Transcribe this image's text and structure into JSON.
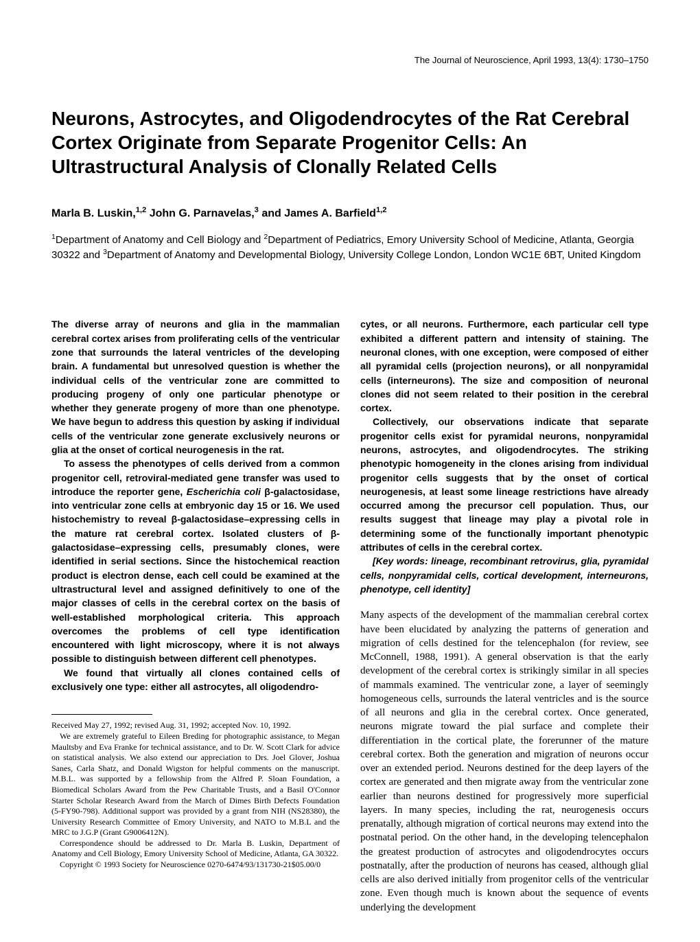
{
  "journal_header": "The Journal of Neuroscience, April 1993, 13(4): 1730–1750",
  "title": "Neurons, Astrocytes, and Oligodendrocytes of the Rat Cerebral Cortex Originate from Separate Progenitor Cells: An Ultrastructural Analysis of Clonally Related Cells",
  "authors_html": "Marla B. Luskin,<sup>1,2</sup> John G. Parnavelas,<sup>3</sup> and James A. Barfield<sup>1,2</sup>",
  "affiliations_html": "<sup>1</sup>Department of Anatomy and Cell Biology and <sup>2</sup>Department of Pediatrics, Emory University School of Medicine, Atlanta, Georgia 30322 and <sup>3</sup>Department of Anatomy and Developmental Biology, University College London, London WC1E 6BT, United Kingdom",
  "abstract": {
    "para1": "The diverse array of neurons and glia in the mammalian cerebral cortex arises from proliferating cells of the ventricular zone that surrounds the lateral ventricles of the developing brain. A fundamental but unresolved question is whether the individual cells of the ventricular zone are committed to producing progeny of only one particular phenotype or whether they generate progeny of more than one phenotype. We have begun to address this question by asking if individual cells of the ventricular zone generate exclusively neurons or glia at the onset of cortical neurogenesis in the rat.",
    "para2_html": "To assess the phenotypes of cells derived from a common progenitor cell, retroviral-mediated gene transfer was used to introduce the reporter gene, <i>Escherichia coli</i> β-galactosidase, into ventricular zone cells at embryonic day 15 or 16. We used histochemistry to reveal β-galactosidase–expressing cells in the mature rat cerebral cortex. Isolated clusters of β-galactosidase–expressing cells, presumably clones, were identified in serial sections. Since the histochemical reaction product is electron dense, each cell could be examined at the ultrastructural level and assigned definitively to one of the major classes of cells in the cerebral cortex on the basis of well-established morphological criteria. This approach overcomes the problems of cell type identification encountered with light microscopy, where it is not always possible to distinguish between different cell phenotypes.",
    "para3": "We found that virtually all clones contained cells of exclusively one type: either all astrocytes, all oligodendro-",
    "para4": "cytes, or all neurons. Furthermore, each particular cell type exhibited a different pattern and intensity of staining. The neuronal clones, with one exception, were composed of either all pyramidal cells (projection neurons), or all nonpyramidal cells (interneurons). The size and composition of neuronal clones did not seem related to their position in the cerebral cortex.",
    "para5": "Collectively, our observations indicate that separate progenitor cells exist for pyramidal neurons, nonpyramidal neurons, astrocytes, and oligodendrocytes. The striking phenotypic homogeneity in the clones arising from individual progenitor cells suggests that by the onset of cortical neurogenesis, at least some lineage restrictions have already occurred among the precursor cell population. Thus, our results suggest that lineage may play a pivotal role in determining some of the functionally important phenotypic attributes of cells in the cerebral cortex.",
    "keywords": "[Key words: lineage, recombinant retrovirus, glia, pyramidal cells, nonpyramidal cells, cortical development, interneurons, phenotype, cell identity]"
  },
  "body": {
    "para1": "Many aspects of the development of the mammalian cerebral cortex have been elucidated by analyzing the patterns of generation and migration of cells destined for the telencephalon (for review, see McConnell, 1988, 1991). A general observation is that the early development of the cerebral cortex is strikingly similar in all species of mammals examined. The ventricular zone, a layer of seemingly homogeneous cells, surrounds the lateral ventricles and is the source of all neurons and glia in the cerebral cortex. Once generated, neurons migrate toward the pial surface and complete their differentiation in the cortical plate, the forerunner of the mature cerebral cortex. Both the generation and migration of neurons occur over an extended period. Neurons destined for the deep layers of the cortex are generated and then migrate away from the ventricular zone earlier than neurons destined for progressively more superficial layers. In many species, including the rat, neurogenesis occurs prenatally, although migration of cortical neurons may extend into the postnatal period. On the other hand, in the developing telencephalon the greatest production of astrocytes and oligodendrocytes occurs postnatally, after the production of neurons has ceased, although glial cells are also derived initially from progenitor cells of the ventricular zone. Even though much is known about the sequence of events underlying the development"
  },
  "footnotes": {
    "received": "Received May 27, 1992; revised Aug. 31, 1992; accepted Nov. 10, 1992.",
    "acknowledgments": "We are extremely grateful to Eileen Breding for photographic assistance, to Megan Maultsby and Eva Franke for technical assistance, and to Dr. W. Scott Clark for advice on statistical analysis. We also extend our appreciation to Drs. Joel Glover, Joshua Sanes, Carla Shatz, and Donald Wigston for helpful comments on the manuscript. M.B.L. was supported by a fellowship from the Alfred P. Sloan Foundation, a Biomedical Scholars Award from the Pew Charitable Trusts, and a Basil O'Connor Starter Scholar Research Award from the March of Dimes Birth Defects Foundation (5-FY90-798). Additional support was provided by a grant from NIH (NS28380), the University Research Committee of Emory University, and NATO to M.B.L and the MRC to J.G.P (Grant G9006412N).",
    "correspondence": "Correspondence should be addressed to Dr. Marla B. Luskin, Department of Anatomy and Cell Biology, Emory University School of Medicine, Atlanta, GA 30322.",
    "copyright": "Copyright © 1993 Society for Neuroscience 0270-6474/93/131730-21$05.00/0"
  }
}
